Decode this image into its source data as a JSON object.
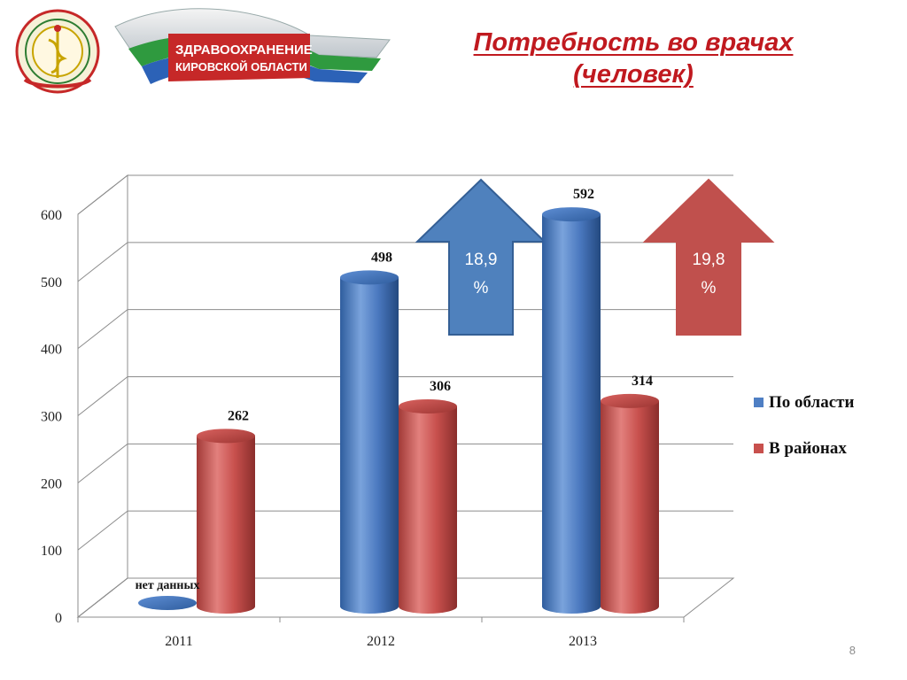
{
  "logo": {
    "line1": "ЗДРАВООХРАНЕНИЕ",
    "line2": "КИРОВСКОЙ ОБЛАСТИ",
    "seal_text": "ЗДРАВООХРАНЕНИЕ КИРОВСКОЙ ОБЛАСТИ"
  },
  "title": {
    "line1": "Потребность во врачах",
    "line2": "(человек)"
  },
  "page_number": "8",
  "colors": {
    "series_region": "#4f7fc4",
    "series_districts": "#c8504d",
    "title": "#c0191f",
    "arrow_blue": "#4f81bd",
    "arrow_red": "#c0504d"
  },
  "arrows": [
    {
      "label_line1": "18,9",
      "label_line2": "%",
      "color": "#4f81bd"
    },
    {
      "label_line1": "19,8",
      "label_line2": "%",
      "color": "#c0504d"
    }
  ],
  "chart_data": {
    "type": "bar",
    "style": "3d-cylinder",
    "categories": [
      "2011",
      "2012",
      "2013"
    ],
    "series": [
      {
        "name": "По области",
        "values": [
          null,
          498,
          592
        ],
        "labels": [
          "нет данных",
          "498",
          "592"
        ]
      },
      {
        "name": "В районах",
        "values": [
          262,
          306,
          314
        ],
        "labels": [
          "262",
          "306",
          "314"
        ]
      }
    ],
    "ylim": [
      0,
      600
    ],
    "yticks": [
      "0",
      "100",
      "200",
      "300",
      "400",
      "500",
      "600"
    ],
    "grid": true,
    "legend": "right",
    "title": "",
    "xlabel": "",
    "ylabel": ""
  }
}
